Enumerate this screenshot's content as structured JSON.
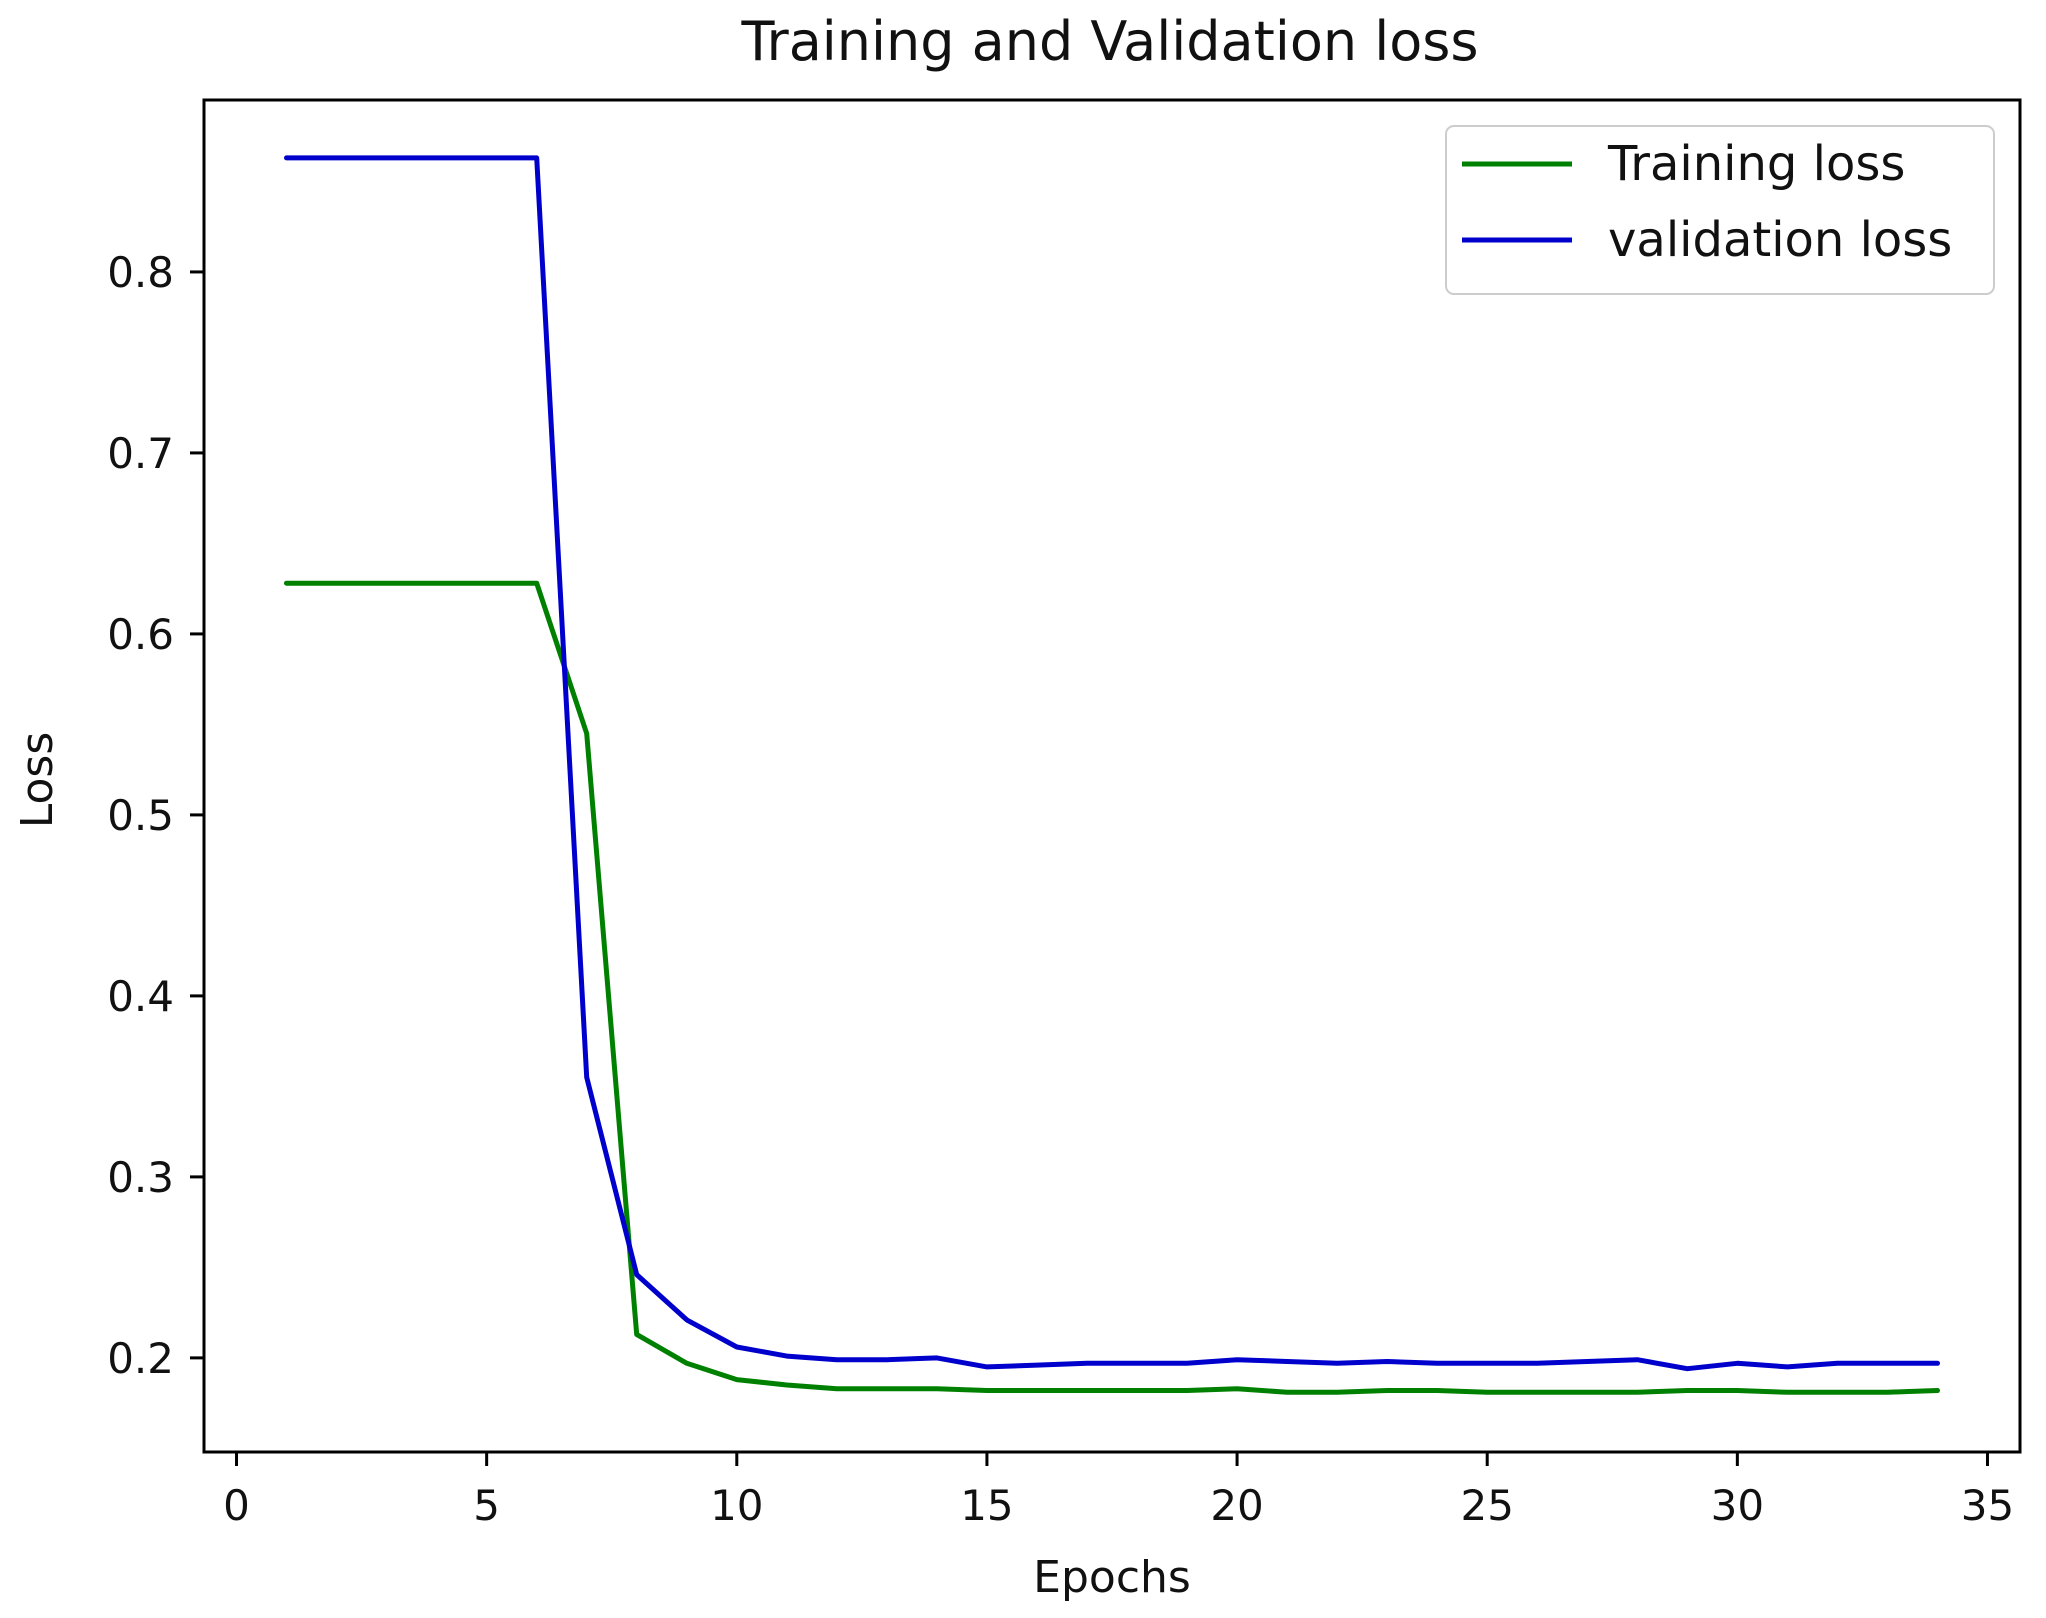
{
  "chart_data": {
    "type": "line",
    "title": "Training and Validation loss",
    "xlabel": "Epochs",
    "ylabel": "Loss",
    "xlim": [
      -0.65,
      35.65
    ],
    "ylim": [
      0.148,
      0.895
    ],
    "xticks": [
      0,
      5,
      10,
      15,
      20,
      25,
      30,
      35
    ],
    "yticks": [
      0.2,
      0.3,
      0.4,
      0.5,
      0.6,
      0.7,
      0.8
    ],
    "xtick_labels": [
      "0",
      "5",
      "10",
      "15",
      "20",
      "25",
      "30",
      "35"
    ],
    "ytick_labels": [
      "0.2",
      "0.3",
      "0.4",
      "0.5",
      "0.6",
      "0.7",
      "0.8"
    ],
    "grid": false,
    "legend_position": "top-right",
    "x": [
      1,
      2,
      3,
      4,
      5,
      6,
      7,
      8,
      9,
      10,
      11,
      12,
      13,
      14,
      15,
      16,
      17,
      18,
      19,
      20,
      21,
      22,
      23,
      24,
      25,
      26,
      27,
      28,
      29,
      30,
      31,
      32,
      33,
      34
    ],
    "series": [
      {
        "name": "Training loss",
        "color": "#008000",
        "values": [
          0.628,
          0.628,
          0.628,
          0.628,
          0.628,
          0.628,
          0.545,
          0.213,
          0.197,
          0.188,
          0.185,
          0.183,
          0.183,
          0.183,
          0.182,
          0.182,
          0.182,
          0.182,
          0.182,
          0.183,
          0.181,
          0.181,
          0.182,
          0.182,
          0.181,
          0.181,
          0.181,
          0.181,
          0.182,
          0.182,
          0.181,
          0.181,
          0.181,
          0.182
        ]
      },
      {
        "name": "validation loss",
        "color": "#0000cd",
        "values": [
          0.863,
          0.863,
          0.863,
          0.863,
          0.863,
          0.863,
          0.355,
          0.246,
          0.221,
          0.206,
          0.201,
          0.199,
          0.199,
          0.2,
          0.195,
          0.196,
          0.197,
          0.197,
          0.197,
          0.199,
          0.198,
          0.197,
          0.198,
          0.197,
          0.197,
          0.197,
          0.198,
          0.199,
          0.194,
          0.197,
          0.195,
          0.197,
          0.197,
          0.197
        ]
      }
    ]
  }
}
